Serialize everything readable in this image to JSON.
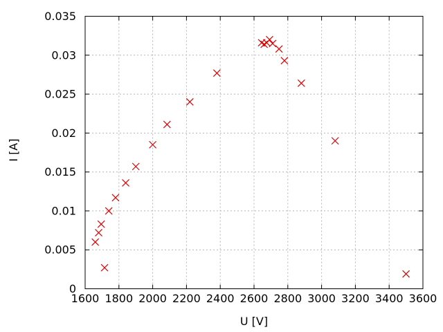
{
  "figure": {
    "background": "#ffffff"
  },
  "chart_data": {
    "type": "scatter",
    "title": "",
    "xlabel": "U [V]",
    "ylabel": "I [A]",
    "xlim": [
      1600,
      3600
    ],
    "ylim": [
      0,
      0.035
    ],
    "x_ticks": [
      1600,
      1800,
      2000,
      2200,
      2400,
      2600,
      2800,
      3000,
      3200,
      3400,
      3600
    ],
    "x_tick_labels": [
      "1600",
      "1800",
      "2000",
      "2200",
      "2400",
      "2600",
      "2800",
      "3000",
      "3200",
      "3400",
      "3600"
    ],
    "y_ticks": [
      0,
      0.005,
      0.01,
      0.015,
      0.02,
      0.025,
      0.03,
      0.035
    ],
    "y_tick_labels": [
      "0",
      "0.005",
      "0.01",
      "0.015",
      "0.02",
      "0.025",
      "0.03",
      "0.035"
    ],
    "grid": true,
    "legend": "none",
    "marker_style": "x",
    "colors": {
      "marker": "#dd0000",
      "grid": "#b4b4b4",
      "axis": "#000000",
      "text": "#000000"
    },
    "series": [
      {
        "name": "",
        "points": [
          {
            "x": 1660,
            "y": 0.006
          },
          {
            "x": 1680,
            "y": 0.0072
          },
          {
            "x": 1695,
            "y": 0.0083
          },
          {
            "x": 1715,
            "y": 0.0027
          },
          {
            "x": 1740,
            "y": 0.01
          },
          {
            "x": 1780,
            "y": 0.0117
          },
          {
            "x": 1840,
            "y": 0.0136
          },
          {
            "x": 1900,
            "y": 0.0157
          },
          {
            "x": 2000,
            "y": 0.0185
          },
          {
            "x": 2085,
            "y": 0.0211
          },
          {
            "x": 2220,
            "y": 0.024
          },
          {
            "x": 2380,
            "y": 0.0277
          },
          {
            "x": 2645,
            "y": 0.0316
          },
          {
            "x": 2660,
            "y": 0.0314
          },
          {
            "x": 2675,
            "y": 0.0316
          },
          {
            "x": 2692,
            "y": 0.032
          },
          {
            "x": 2710,
            "y": 0.0315
          },
          {
            "x": 2748,
            "y": 0.0308
          },
          {
            "x": 2780,
            "y": 0.0293
          },
          {
            "x": 2880,
            "y": 0.0264
          },
          {
            "x": 3080,
            "y": 0.019
          },
          {
            "x": 3500,
            "y": 0.0019
          }
        ]
      }
    ]
  }
}
